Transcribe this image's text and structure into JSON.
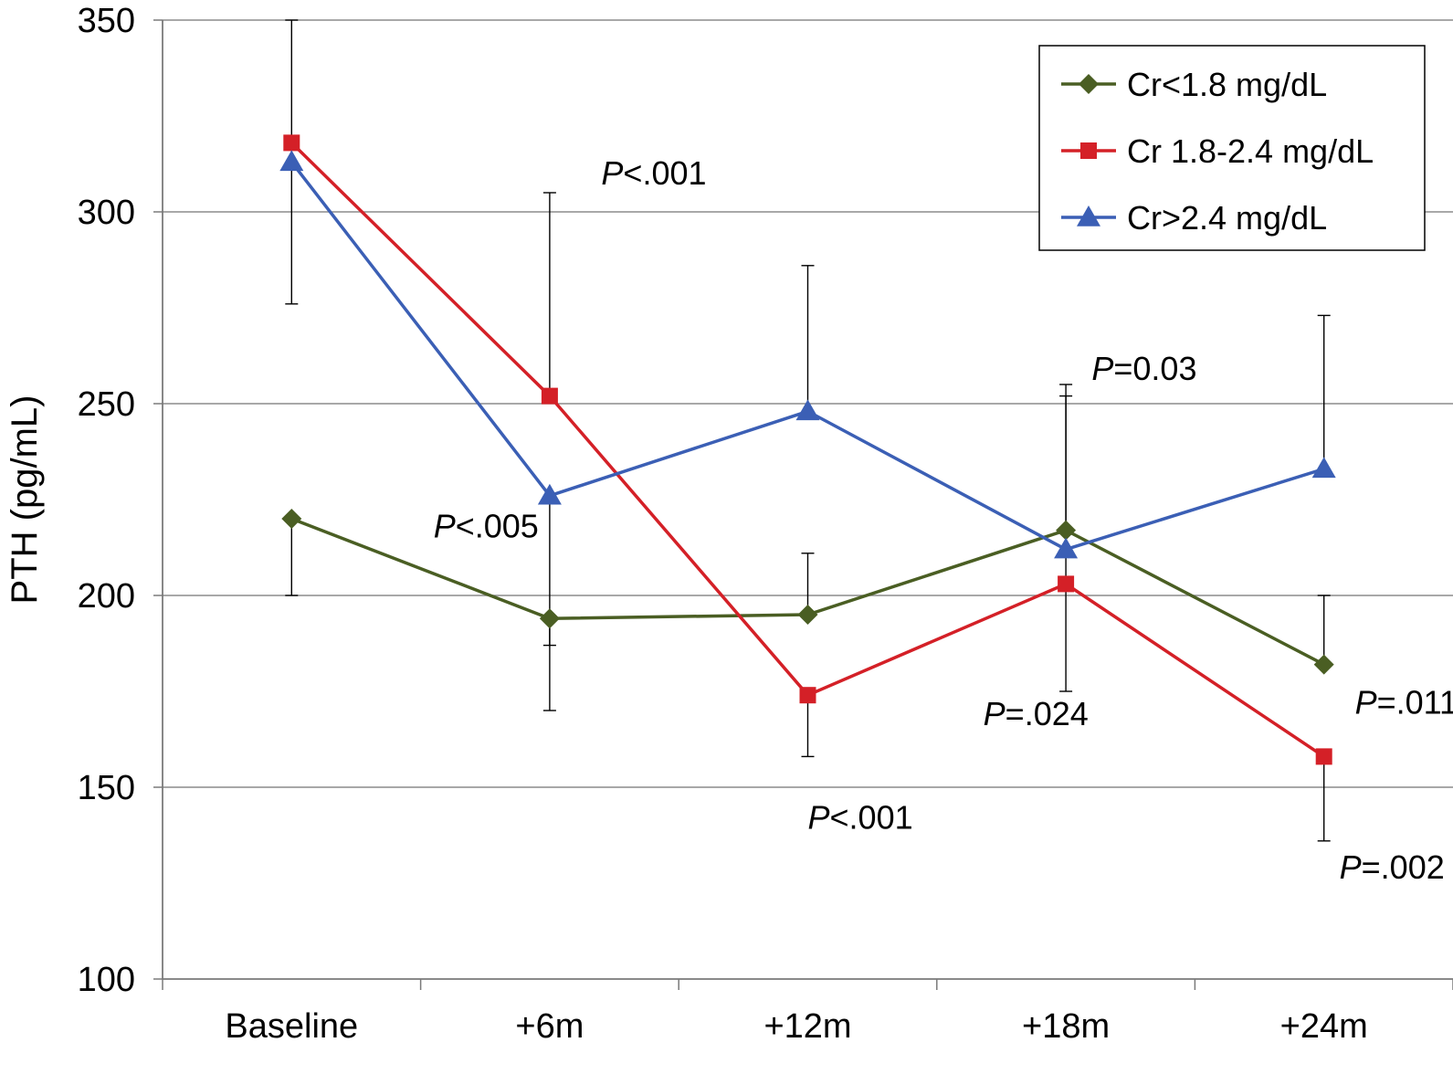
{
  "chart_data": {
    "type": "line",
    "title": "",
    "xlabel": "",
    "ylabel": "PTH (pg/mL)",
    "ylim": [
      100,
      350
    ],
    "yticks": [
      100,
      150,
      200,
      250,
      300,
      350
    ],
    "grid": "horizontal",
    "legend_position": "top-right",
    "categories": [
      "Baseline",
      "+6m",
      "+12m",
      "+18m",
      "+24m"
    ],
    "series": [
      {
        "name": "Cr<1.8 mg/dL",
        "color": "#4a5e23",
        "marker": "diamond",
        "values": [
          220,
          194,
          195,
          217,
          182
        ],
        "err_low": [
          200,
          170,
          null,
          175,
          null
        ],
        "err_high": [
          null,
          null,
          211,
          252,
          200
        ]
      },
      {
        "name": "Cr 1.8-2.4 mg/dL",
        "color": "#d42027",
        "marker": "square",
        "values": [
          318,
          252,
          174,
          203,
          158
        ],
        "err_low": [
          null,
          null,
          158,
          null,
          136
        ],
        "err_high": [
          null,
          305,
          null,
          null,
          null
        ]
      },
      {
        "name": "Cr>2.4 mg/dL",
        "color": "#3b5fb5",
        "marker": "triangle",
        "values": [
          313,
          226,
          248,
          212,
          233
        ],
        "err_low": [
          276,
          187,
          null,
          null,
          null
        ],
        "err_high": [
          350,
          null,
          286,
          255,
          273
        ]
      }
    ],
    "annotations": [
      {
        "text": "P<.001",
        "x": 1.2,
        "y": 310
      },
      {
        "text": "P<.005",
        "x": 0.55,
        "y": 218
      },
      {
        "text": "P=0.03",
        "x": 3.1,
        "y": 259
      },
      {
        "text": "P=.024",
        "x": 2.68,
        "y": 169
      },
      {
        "text": "P<.001",
        "x": 2.0,
        "y": 142
      },
      {
        "text": "P=.011",
        "x": 4.12,
        "y": 172
      },
      {
        "text": "P=.002",
        "x": 4.06,
        "y": 129
      }
    ]
  }
}
